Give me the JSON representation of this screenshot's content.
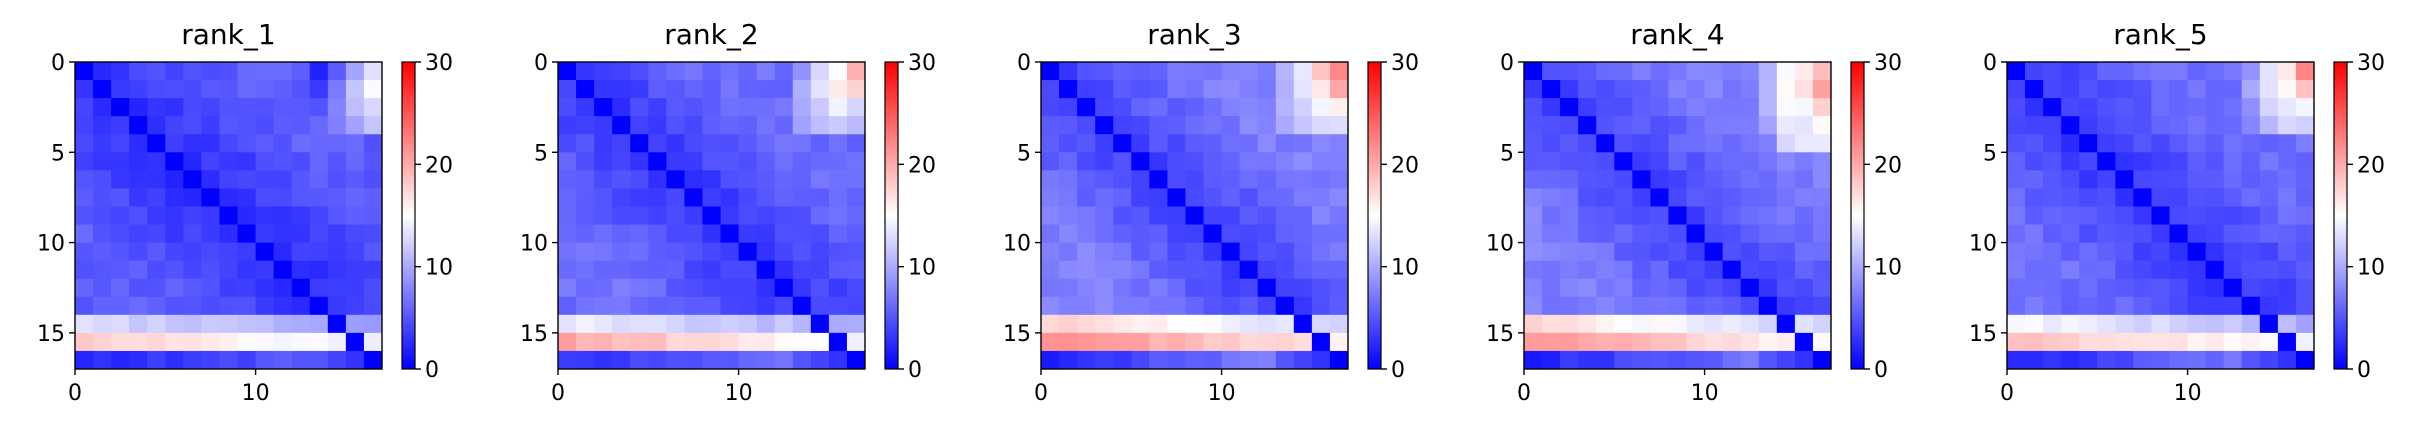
{
  "chart_data": [
    {
      "type": "heatmap",
      "title": "rank_1",
      "size": 17,
      "colormap": "bwr",
      "vmin": 0,
      "vmax": 30,
      "colorbar_ticks": [
        "0",
        "10",
        "20",
        "30"
      ],
      "x_ticks": [
        "0",
        "10"
      ],
      "y_ticks": [
        "0",
        "5",
        "10",
        "15"
      ],
      "structure": {
        "diag": 0,
        "near": 2.5,
        "far": 5.5,
        "last_rows": [
          [
            14,
            10,
            13
          ],
          [
            15,
            14,
            18
          ],
          [
            16,
            6,
            2
          ]
        ],
        "top_right_rows": [
          [
            0,
            2,
            6,
            10,
            13
          ],
          [
            1,
            3,
            7,
            11,
            14
          ],
          [
            2,
            5,
            8,
            11,
            12
          ],
          [
            3,
            6,
            8,
            9,
            12
          ]
        ]
      }
    },
    {
      "type": "heatmap",
      "title": "rank_2",
      "size": 17,
      "colormap": "bwr",
      "vmin": 0,
      "vmax": 30,
      "colorbar_ticks": [
        "0",
        "10",
        "20",
        "30"
      ],
      "x_ticks": [
        "0",
        "10"
      ],
      "y_ticks": [
        "0",
        "5",
        "10",
        "15"
      ],
      "structure": {
        "diag": 0,
        "near": 3,
        "far": 6.5,
        "last_rows": [
          [
            14,
            11,
            14
          ],
          [
            15,
            15,
            20
          ],
          [
            16,
            7,
            3
          ]
        ],
        "top_right_rows": [
          [
            0,
            9,
            12,
            15,
            19
          ],
          [
            1,
            10,
            13,
            16,
            18
          ],
          [
            2,
            10,
            12,
            14,
            13
          ],
          [
            3,
            9,
            11,
            12,
            11
          ]
        ]
      }
    },
    {
      "type": "heatmap",
      "title": "rank_3",
      "size": 17,
      "colormap": "bwr",
      "vmin": 0,
      "vmax": 30,
      "colorbar_ticks": [
        "0",
        "10",
        "20",
        "30"
      ],
      "x_ticks": [
        "0",
        "10"
      ],
      "y_ticks": [
        "0",
        "5",
        "10",
        "15"
      ],
      "structure": {
        "diag": 0,
        "near": 3.5,
        "far": 7.5,
        "last_rows": [
          [
            14,
            13,
            18
          ],
          [
            15,
            17,
            22
          ],
          [
            16,
            9,
            2
          ]
        ],
        "top_right_rows": [
          [
            0,
            10,
            14,
            18,
            22
          ],
          [
            1,
            11,
            14,
            17,
            20
          ],
          [
            2,
            11,
            13,
            15,
            16
          ],
          [
            3,
            10,
            12,
            13,
            13
          ]
        ]
      }
    },
    {
      "type": "heatmap",
      "title": "rank_4",
      "size": 17,
      "colormap": "bwr",
      "vmin": 0,
      "vmax": 30,
      "colorbar_ticks": [
        "0",
        "10",
        "20",
        "30"
      ],
      "x_ticks": [
        "0",
        "10"
      ],
      "y_ticks": [
        "0",
        "5",
        "10",
        "15"
      ],
      "structure": {
        "diag": 0,
        "near": 3.5,
        "far": 7.5,
        "last_rows": [
          [
            14,
            13,
            17
          ],
          [
            15,
            16,
            21
          ],
          [
            16,
            8,
            2
          ]
        ],
        "top_right_rows": [
          [
            0,
            10,
            14,
            16,
            19
          ],
          [
            1,
            11,
            15,
            17,
            20
          ],
          [
            2,
            10,
            14,
            15,
            18
          ],
          [
            3,
            9,
            13,
            14,
            16
          ],
          [
            4,
            8,
            12,
            13,
            14
          ]
        ]
      }
    },
    {
      "type": "heatmap",
      "title": "rank_5",
      "size": 17,
      "colormap": "bwr",
      "vmin": 0,
      "vmax": 30,
      "colorbar_ticks": [
        "0",
        "10",
        "20",
        "30"
      ],
      "x_ticks": [
        "0",
        "10"
      ],
      "y_ticks": [
        "0",
        "5",
        "10",
        "15"
      ],
      "structure": {
        "diag": 0,
        "near": 3,
        "far": 6.5,
        "last_rows": [
          [
            14,
            11,
            15
          ],
          [
            15,
            15,
            19
          ],
          [
            16,
            8,
            2
          ]
        ],
        "top_right_rows": [
          [
            0,
            9,
            13,
            17,
            22
          ],
          [
            1,
            10,
            14,
            15,
            18
          ],
          [
            2,
            9,
            12,
            14,
            14
          ],
          [
            3,
            8,
            11,
            12,
            12
          ]
        ]
      }
    }
  ]
}
